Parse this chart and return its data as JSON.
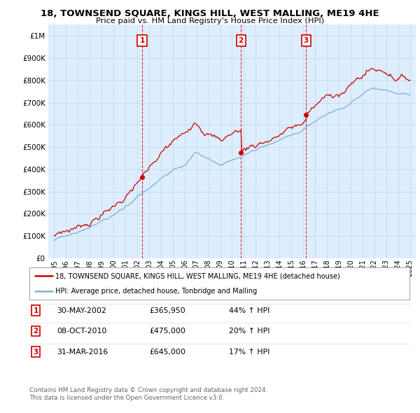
{
  "title": "18, TOWNSEND SQUARE, KINGS HILL, WEST MALLING, ME19 4HE",
  "subtitle": "Price paid vs. HM Land Registry's House Price Index (HPI)",
  "legend_line1": "18, TOWNSEND SQUARE, KINGS HILL, WEST MALLING, ME19 4HE (detached house)",
  "legend_line2": "HPI: Average price, detached house, Tonbridge and Malling",
  "sale_color": "#cc0000",
  "hpi_color": "#7bafd4",
  "plot_bg": "#ddeeff",
  "sale_events": [
    {
      "label": "1",
      "date_x": 2002.41,
      "price": 365950,
      "pct": "44%",
      "date_str": "30-MAY-2002"
    },
    {
      "label": "2",
      "date_x": 2010.75,
      "price": 475000,
      "pct": "20%",
      "date_str": "08-OCT-2010"
    },
    {
      "label": "3",
      "date_x": 2016.25,
      "price": 645000,
      "pct": "17%",
      "date_str": "31-MAR-2016"
    }
  ],
  "footer_line1": "Contains HM Land Registry data © Crown copyright and database right 2024.",
  "footer_line2": "This data is licensed under the Open Government Licence v3.0.",
  "ylim": [
    0,
    1050000
  ],
  "yticks": [
    0,
    100000,
    200000,
    300000,
    400000,
    500000,
    600000,
    700000,
    800000,
    900000,
    1000000
  ],
  "ytick_labels": [
    "£0",
    "£100K",
    "£200K",
    "£300K",
    "£400K",
    "£500K",
    "£600K",
    "£700K",
    "£800K",
    "£900K",
    "£1M"
  ],
  "xlim_start": 1994.5,
  "xlim_end": 2025.5,
  "xticks": [
    1995,
    1996,
    1997,
    1998,
    1999,
    2000,
    2001,
    2002,
    2003,
    2004,
    2005,
    2006,
    2007,
    2008,
    2009,
    2010,
    2011,
    2012,
    2013,
    2014,
    2015,
    2016,
    2017,
    2018,
    2019,
    2020,
    2021,
    2022,
    2023,
    2024,
    2025
  ],
  "background_color": "#ffffff",
  "grid_color": "#c8d8e8"
}
